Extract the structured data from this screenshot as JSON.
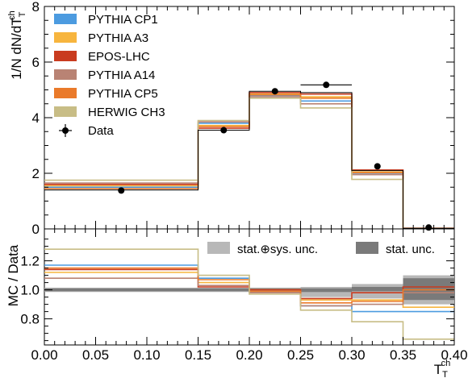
{
  "chart_data": [
    {
      "type": "line",
      "panel": "distribution",
      "ylabel": "1/N dN/dT",
      "ylabel_sup": "ch",
      "ylabel_sub": "T",
      "ylim": [
        0,
        8
      ],
      "yticks": [
        "0",
        "2",
        "4",
        "6",
        "8"
      ],
      "bin_edges": [
        0.0,
        0.15,
        0.2,
        0.25,
        0.3,
        0.35,
        0.4
      ],
      "legend_position": "top-left",
      "series": [
        {
          "name": "PYTHIA CP1",
          "color": "#4c9be0",
          "values": [
            1.5,
            3.8,
            4.8,
            4.6,
            2.0,
            0.02
          ]
        },
        {
          "name": "PYTHIA A3",
          "color": "#f7b53e",
          "values": [
            1.55,
            3.72,
            4.85,
            4.75,
            2.05,
            0.02
          ]
        },
        {
          "name": "EPOS-LHC",
          "color": "#c93b1f",
          "values": [
            1.6,
            3.62,
            4.9,
            4.85,
            2.12,
            0.03
          ]
        },
        {
          "name": "PYTHIA A14",
          "color": "#b98374",
          "values": [
            1.65,
            3.85,
            4.75,
            4.5,
            1.95,
            0.02
          ]
        },
        {
          "name": "PYTHIA CP5",
          "color": "#ea7a2a",
          "values": [
            1.45,
            3.68,
            4.82,
            4.7,
            2.02,
            0.02
          ]
        },
        {
          "name": "HERWIG CH3",
          "color": "#c8bd86",
          "values": [
            1.75,
            3.9,
            4.7,
            4.35,
            1.78,
            0.02
          ]
        },
        {
          "name": "black-reference",
          "color": "#000000",
          "values": [
            1.4,
            3.55,
            4.95,
            4.9,
            2.1,
            0.02
          ]
        }
      ],
      "data_points": {
        "name": "Data",
        "x": [
          0.075,
          0.175,
          0.225,
          0.275,
          0.325,
          0.375
        ],
        "y": [
          1.38,
          3.55,
          4.95,
          5.18,
          2.25,
          0.05
        ],
        "xerr": [
          0.0,
          0.0,
          0.0,
          0.025,
          0.0,
          0.0
        ]
      }
    },
    {
      "type": "line",
      "panel": "ratio",
      "ylabel": "MC / Data",
      "xlabel": "T",
      "xlabel_sup": "ch",
      "xlabel_sub": "T",
      "ylim": [
        0.62,
        1.42
      ],
      "xlim": [
        0.0,
        0.4
      ],
      "yticks": [
        "0.8",
        "1.0",
        "1.2"
      ],
      "xticks": [
        "0.00",
        "0.05",
        "0.10",
        "0.15",
        "0.20",
        "0.25",
        "0.30",
        "0.35",
        "0.40"
      ],
      "legend": [
        {
          "name": "stat.⊕sys. unc.",
          "color": "#b8b8b8"
        },
        {
          "name": "stat. unc.",
          "color": "#7a7a7a"
        }
      ],
      "bin_edges": [
        0.0,
        0.15,
        0.2,
        0.25,
        0.3,
        0.35,
        0.4
      ],
      "uncertainty_bands": {
        "total": {
          "lo": [
            0.985,
            0.985,
            0.985,
            0.95,
            0.94,
            0.9
          ],
          "hi": [
            1.015,
            1.015,
            1.015,
            1.02,
            1.04,
            1.1
          ]
        },
        "stat": {
          "lo": [
            0.99,
            0.99,
            0.99,
            0.985,
            0.99,
            0.93
          ],
          "hi": [
            1.01,
            1.01,
            1.01,
            1.01,
            1.02,
            1.08
          ]
        }
      },
      "series": [
        {
          "name": "PYTHIA CP1",
          "color": "#4c9be0",
          "values": [
            1.17,
            1.08,
            0.99,
            0.89,
            0.85,
            0.85
          ]
        },
        {
          "name": "PYTHIA A3",
          "color": "#f7b53e",
          "values": [
            1.12,
            1.05,
            1.0,
            0.93,
            0.93,
            0.88
          ]
        },
        {
          "name": "EPOS-LHC",
          "color": "#c93b1f",
          "values": [
            1.14,
            1.02,
            1.0,
            0.94,
            0.98,
            1.02
          ]
        },
        {
          "name": "PYTHIA A14",
          "color": "#b98374",
          "values": [
            1.08,
            1.03,
            0.98,
            0.89,
            0.9,
            0.98
          ]
        },
        {
          "name": "PYTHIA CP5",
          "color": "#ea7a2a",
          "values": [
            1.15,
            1.07,
            0.99,
            0.91,
            0.92,
            1.0
          ]
        },
        {
          "name": "HERWIG CH3",
          "color": "#c8bd86",
          "values": [
            1.28,
            1.1,
            0.97,
            0.86,
            0.78,
            0.66
          ]
        }
      ]
    }
  ]
}
